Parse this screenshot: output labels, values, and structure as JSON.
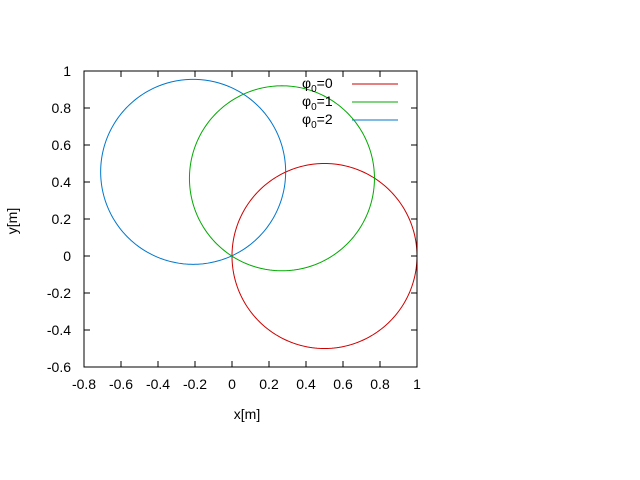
{
  "chart_data": {
    "type": "line",
    "title": "",
    "xlabel": "x[m]",
    "ylabel": "y[m]",
    "xlim": [
      -0.8,
      1
    ],
    "ylim": [
      -0.6,
      1
    ],
    "xticks": [
      -0.8,
      -0.6,
      -0.4,
      -0.2,
      0,
      0.2,
      0.4,
      0.6,
      0.8,
      1
    ],
    "yticks": [
      -0.6,
      -0.4,
      -0.2,
      0,
      0.2,
      0.4,
      0.6,
      0.8,
      1
    ],
    "xtick_labels": [
      "-0.8",
      "-0.6",
      "-0.4",
      "-0.2",
      "0",
      "0.2",
      "0.4",
      "0.6",
      "0.8",
      "1"
    ],
    "ytick_labels": [
      "-0.6",
      "-0.4",
      "-0.2",
      "0",
      "0.2",
      "0.4",
      "0.6",
      "0.8",
      "1"
    ],
    "grid": false,
    "legend_position": "top-right",
    "series": [
      {
        "name": "φ0=0",
        "label_symbol": "φ",
        "label_sub": "0",
        "label_rest": "=0",
        "color": "#cc0000",
        "shape": "circle",
        "center": [
          0.5,
          0
        ],
        "radius": 0.5
      },
      {
        "name": "φ0=1",
        "label_symbol": "φ",
        "label_sub": "0",
        "label_rest": "=1",
        "color": "#00aa00",
        "shape": "circle",
        "center": [
          0.27,
          0.42
        ],
        "radius": 0.5
      },
      {
        "name": "φ0=2",
        "label_symbol": "φ",
        "label_sub": "0",
        "label_rest": "=2",
        "color": "#0077cc",
        "shape": "circle",
        "center": [
          -0.21,
          0.455
        ],
        "radius": 0.5
      }
    ]
  }
}
